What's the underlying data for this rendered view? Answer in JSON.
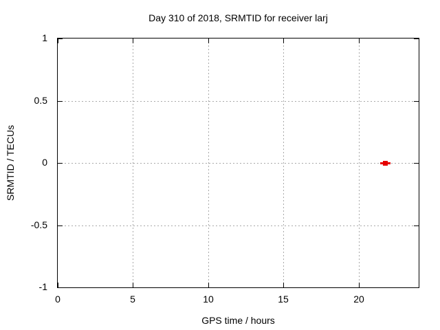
{
  "chart_data": {
    "type": "scatter",
    "title": "Day 310 of 2018, SRMTID for receiver larj",
    "xlabel": "GPS time / hours",
    "ylabel": "SRMTID / TECUs",
    "xlim": [
      0,
      24
    ],
    "ylim": [
      -1,
      1
    ],
    "xticks": [
      0,
      5,
      10,
      15,
      20
    ],
    "xtick_labels": [
      "0",
      "5",
      "10",
      "15",
      "20"
    ],
    "yticks": [
      -1,
      -0.5,
      0,
      0.5,
      1
    ],
    "ytick_labels": [
      "-1",
      "-0.5",
      "0",
      "0.5",
      "1"
    ],
    "grid": true,
    "grid_style": "dotted",
    "legend": false,
    "series": [
      {
        "name": "SRMTID",
        "marker": "filled-square-with-x-errorbar",
        "color": "#e60000",
        "points": [
          {
            "x": 21.8,
            "y": 0.0
          }
        ]
      }
    ]
  },
  "colors": {
    "background": "#ffffff",
    "border": "#000000",
    "grid": "#a8a8a8",
    "text": "#000000",
    "marker": "#e60000"
  }
}
